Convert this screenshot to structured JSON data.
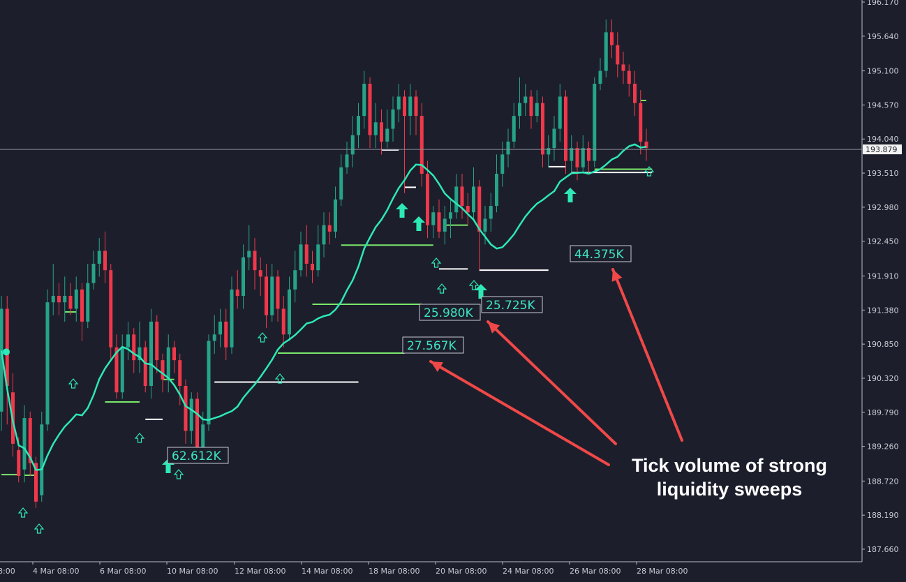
{
  "chart_data": {
    "type": "candlestick",
    "ylim": [
      187.4,
      196.17
    ],
    "y_ticks": [
      "196.170",
      "195.640",
      "195.100",
      "194.570",
      "194.040",
      "193.510",
      "192.980",
      "192.450",
      "191.910",
      "191.380",
      "190.850",
      "190.320",
      "189.790",
      "189.260",
      "188.720",
      "188.190",
      "187.660"
    ],
    "x_ticks": [
      "8:00",
      "4 Mar 08:00",
      "6 Mar 08:00",
      "10 Mar 08:00",
      "12 Mar 08:00",
      "14 Mar 08:00",
      "18 Mar 08:00",
      "20 Mar 08:00",
      "24 Mar 08:00",
      "26 Mar 08:00",
      "28 Mar 08:00"
    ],
    "current_price": "193.879",
    "candles": [
      [
        189.8,
        191.4,
        191.6,
        189.5
      ],
      [
        191.4,
        190.2,
        191.6,
        189.6
      ],
      [
        190.1,
        189.3,
        190.4,
        189.1
      ],
      [
        189.2,
        188.8,
        189.4,
        188.7
      ],
      [
        188.9,
        189.7,
        189.9,
        188.7
      ],
      [
        189.7,
        189.0,
        189.8,
        188.8
      ],
      [
        189.0,
        188.4,
        189.1,
        188.3
      ],
      [
        188.5,
        189.6,
        189.8,
        188.4
      ],
      [
        189.6,
        191.5,
        191.7,
        189.5
      ],
      [
        191.5,
        191.6,
        192.1,
        191.3
      ],
      [
        191.6,
        191.5,
        191.8,
        191.3
      ],
      [
        191.5,
        191.6,
        191.9,
        191.2
      ],
      [
        191.6,
        191.4,
        191.8,
        191.3
      ],
      [
        191.4,
        191.7,
        191.9,
        191.2
      ],
      [
        191.7,
        191.2,
        191.8,
        190.9
      ],
      [
        191.2,
        191.8,
        192.1,
        191.1
      ],
      [
        191.8,
        192.1,
        192.3,
        191.7
      ],
      [
        192.1,
        192.3,
        192.5,
        191.9
      ],
      [
        192.3,
        192.0,
        192.6,
        191.8
      ],
      [
        192.0,
        190.8,
        192.1,
        190.6
      ],
      [
        190.8,
        190.1,
        191.0,
        190.0
      ],
      [
        190.1,
        190.8,
        191.0,
        190.0
      ],
      [
        190.8,
        191.0,
        191.2,
        190.6
      ],
      [
        191.0,
        190.6,
        191.1,
        190.4
      ],
      [
        190.6,
        190.8,
        191.2,
        190.4
      ],
      [
        190.8,
        190.2,
        190.9,
        190.1
      ],
      [
        190.2,
        191.2,
        191.4,
        190.0
      ],
      [
        191.2,
        190.6,
        191.3,
        190.4
      ],
      [
        190.6,
        190.3,
        190.7,
        190.1
      ],
      [
        190.3,
        190.8,
        191.0,
        190.1
      ],
      [
        190.8,
        190.6,
        190.9,
        190.4
      ],
      [
        190.6,
        190.2,
        190.7,
        189.9
      ],
      [
        190.2,
        189.5,
        190.3,
        189.3
      ],
      [
        189.5,
        190.0,
        190.1,
        189.3
      ],
      [
        190.0,
        189.2,
        190.1,
        189.0
      ],
      [
        189.2,
        189.6,
        189.8,
        189.0
      ],
      [
        189.6,
        190.9,
        191.0,
        189.5
      ],
      [
        190.9,
        191.0,
        191.3,
        190.7
      ],
      [
        191.0,
        191.2,
        191.4,
        190.8
      ],
      [
        191.2,
        190.8,
        191.4,
        190.6
      ],
      [
        190.8,
        191.7,
        191.9,
        190.7
      ],
      [
        191.7,
        191.6,
        192.0,
        191.4
      ],
      [
        191.6,
        192.2,
        192.4,
        191.4
      ],
      [
        192.2,
        192.3,
        192.7,
        192.0
      ],
      [
        192.3,
        192.0,
        192.5,
        191.7
      ],
      [
        192.0,
        191.9,
        192.2,
        191.6
      ],
      [
        191.9,
        191.3,
        192.1,
        191.1
      ],
      [
        191.3,
        191.9,
        192.1,
        191.2
      ],
      [
        191.9,
        191.4,
        192.0,
        191.2
      ],
      [
        191.4,
        191.0,
        191.6,
        190.8
      ],
      [
        191.0,
        191.7,
        191.9,
        190.9
      ],
      [
        191.7,
        192.0,
        192.3,
        191.5
      ],
      [
        192.0,
        192.4,
        192.6,
        191.9
      ],
      [
        192.4,
        192.1,
        192.7,
        191.9
      ],
      [
        192.1,
        192.0,
        192.3,
        191.8
      ],
      [
        192.0,
        192.4,
        192.7,
        191.9
      ],
      [
        192.4,
        192.7,
        192.9,
        192.2
      ],
      [
        192.7,
        192.6,
        192.9,
        192.4
      ],
      [
        192.6,
        193.1,
        193.3,
        192.5
      ],
      [
        193.1,
        193.6,
        193.8,
        193.0
      ],
      [
        193.6,
        193.8,
        194.0,
        193.5
      ],
      [
        193.8,
        194.1,
        194.4,
        193.6
      ],
      [
        194.1,
        194.4,
        194.6,
        193.9
      ],
      [
        194.4,
        194.9,
        195.1,
        194.2
      ],
      [
        194.9,
        194.1,
        195.0,
        193.9
      ],
      [
        194.1,
        194.3,
        194.6,
        193.9
      ],
      [
        194.3,
        194.0,
        194.5,
        193.8
      ],
      [
        194.0,
        194.2,
        194.5,
        193.9
      ],
      [
        194.2,
        194.5,
        194.7,
        194.0
      ],
      [
        194.5,
        194.7,
        194.9,
        194.3
      ],
      [
        194.7,
        194.4,
        194.8,
        193.2
      ],
      [
        194.4,
        194.7,
        194.9,
        194.1
      ],
      [
        194.7,
        194.4,
        194.8,
        194.1
      ],
      [
        194.4,
        193.5,
        194.6,
        193.3
      ],
      [
        193.5,
        192.7,
        193.7,
        192.5
      ],
      [
        192.7,
        192.9,
        193.0,
        192.5
      ],
      [
        192.9,
        192.6,
        193.1,
        192.5
      ],
      [
        192.6,
        192.8,
        193.0,
        192.4
      ],
      [
        192.8,
        192.9,
        193.1,
        192.5
      ],
      [
        192.9,
        193.3,
        193.5,
        192.8
      ],
      [
        193.3,
        193.0,
        193.5,
        192.8
      ],
      [
        193.0,
        192.9,
        193.2,
        192.7
      ],
      [
        192.9,
        193.3,
        193.6,
        192.8
      ],
      [
        193.3,
        192.6,
        193.4,
        192.0
      ],
      [
        192.6,
        192.8,
        193.0,
        192.4
      ],
      [
        192.8,
        193.0,
        193.2,
        192.6
      ],
      [
        193.0,
        193.5,
        193.8,
        192.9
      ],
      [
        193.5,
        193.8,
        194.0,
        193.3
      ],
      [
        193.8,
        194.0,
        194.2,
        193.6
      ],
      [
        194.0,
        194.4,
        194.6,
        193.9
      ],
      [
        194.4,
        194.6,
        195.0,
        194.2
      ],
      [
        194.6,
        194.7,
        194.9,
        194.4
      ],
      [
        194.7,
        194.4,
        194.8,
        194.2
      ],
      [
        194.4,
        194.6,
        194.8,
        194.3
      ],
      [
        194.6,
        193.8,
        194.7,
        193.6
      ],
      [
        193.8,
        193.9,
        194.1,
        193.6
      ],
      [
        193.9,
        194.2,
        194.4,
        193.7
      ],
      [
        194.2,
        194.7,
        194.9,
        194.0
      ],
      [
        194.7,
        193.7,
        194.8,
        193.5
      ],
      [
        193.7,
        193.9,
        194.1,
        193.5
      ],
      [
        193.9,
        193.6,
        194.0,
        193.4
      ],
      [
        193.6,
        193.9,
        194.1,
        193.5
      ],
      [
        193.9,
        193.7,
        194.0,
        193.5
      ],
      [
        193.7,
        194.9,
        195.0,
        193.6
      ],
      [
        194.9,
        195.1,
        195.3,
        194.8
      ],
      [
        195.1,
        195.7,
        195.9,
        195.0
      ],
      [
        195.7,
        195.5,
        195.9,
        195.3
      ],
      [
        195.5,
        195.2,
        195.7,
        195.0
      ],
      [
        195.2,
        195.1,
        195.4,
        194.9
      ],
      [
        195.1,
        194.9,
        195.2,
        194.7
      ],
      [
        194.9,
        194.6,
        195.1,
        194.4
      ],
      [
        194.6,
        194.0,
        194.8,
        193.8
      ],
      [
        194.0,
        193.9,
        194.2,
        193.7
      ]
    ],
    "volume_labels": [
      {
        "text": "62.612K",
        "x": 9.95,
        "y": 189.21
      },
      {
        "text": "27.567K",
        "x": 14.9,
        "y": 190.84
      },
      {
        "text": "25.980K",
        "x": 20.1,
        "y": 191.31
      },
      {
        "text": "25.725K",
        "x": 21.6,
        "y": 191.36
      },
      {
        "text": "44.375K",
        "x": 26.6,
        "y": 192.27
      }
    ],
    "annotation": [
      "Tick volume of strong",
      "liquidity sweeps"
    ]
  }
}
